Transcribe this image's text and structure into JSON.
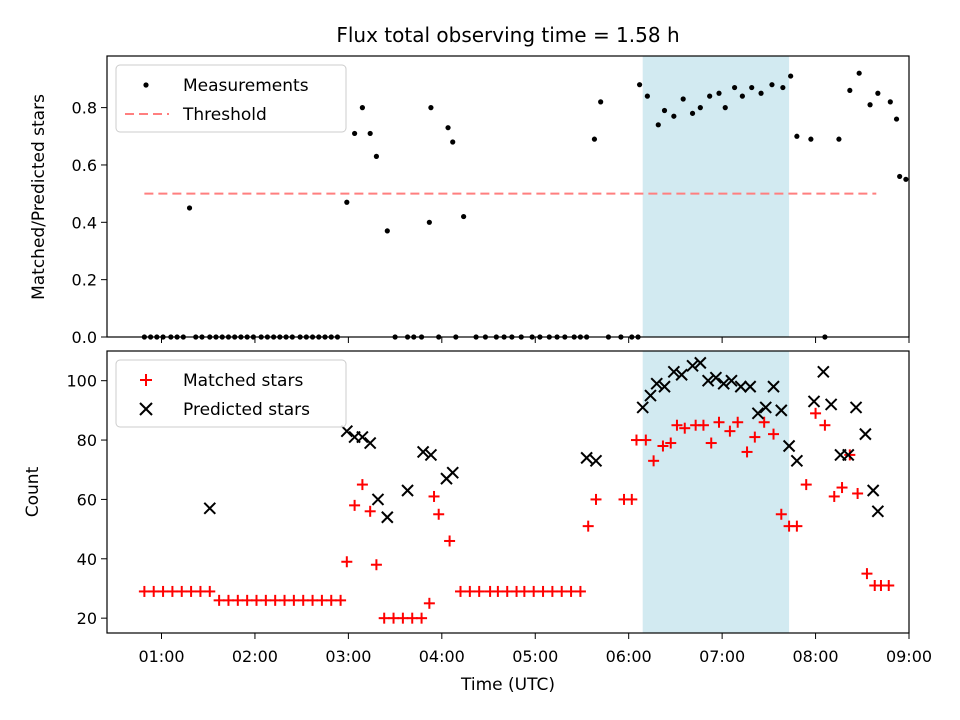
{
  "chart_data": [
    {
      "type": "scatter",
      "title": "Flux total observing time = 1.58 h",
      "ylabel": "Matched/Predicted stars",
      "xlabel": "",
      "ylim": [
        0,
        0.98
      ],
      "yticks": [
        "0.0",
        "0.2",
        "0.4",
        "0.6",
        "0.8"
      ],
      "legend": {
        "placement": "top-left",
        "entries": [
          "Measurements",
          "Threshold"
        ]
      },
      "highlight": {
        "x_start": "06:09",
        "x_end": "07:43"
      },
      "threshold": {
        "y": 0.5,
        "x_start": "00:49",
        "x_end": "08:39",
        "color": "#ff7f7f"
      },
      "series": [
        {
          "name": "Measurements",
          "color": "#000000",
          "x": [
            "00:49",
            "00:53",
            "00:57",
            "01:01",
            "01:06",
            "01:10",
            "01:14",
            "01:18",
            "01:22",
            "01:26",
            "01:31",
            "01:35",
            "01:39",
            "01:43",
            "01:47",
            "01:51",
            "01:55",
            "01:59",
            "02:04",
            "02:08",
            "02:12",
            "02:16",
            "02:20",
            "02:24",
            "02:29",
            "02:33",
            "02:37",
            "02:41",
            "02:45",
            "02:49",
            "02:53",
            "02:59",
            "03:04",
            "03:09",
            "03:14",
            "03:18",
            "03:25",
            "03:30",
            "03:38",
            "03:42",
            "03:47",
            "03:52",
            "03:58",
            "03:53",
            "04:04",
            "04:07",
            "04:09",
            "04:14",
            "04:22",
            "04:28",
            "04:35",
            "04:40",
            "04:45",
            "04:51",
            "04:58",
            "05:03",
            "05:09",
            "05:14",
            "05:19",
            "05:25",
            "05:29",
            "05:33",
            "05:38",
            "05:42",
            "05:47",
            "05:55",
            "06:02",
            "06:06",
            "06:07",
            "06:12",
            "06:19",
            "06:23",
            "06:29",
            "06:35",
            "06:41",
            "06:46",
            "06:52",
            "06:58",
            "07:02",
            "07:08",
            "07:13",
            "07:19",
            "07:25",
            "07:32",
            "07:39",
            "07:44",
            "07:48",
            "07:57",
            "08:06",
            "08:15",
            "08:22",
            "08:28",
            "08:35",
            "08:40",
            "08:48",
            "08:52",
            "08:54",
            "08:58"
          ],
          "y": [
            0,
            0,
            0,
            0,
            0,
            0,
            0,
            0.45,
            0,
            0,
            0,
            0,
            0,
            0,
            0,
            0,
            0,
            0,
            0,
            0,
            0,
            0,
            0,
            0,
            0,
            0,
            0,
            0,
            0,
            0,
            0,
            0.47,
            0.71,
            0.8,
            0.71,
            0.63,
            0.37,
            0,
            0,
            0,
            0,
            0.4,
            0,
            0.8,
            0.73,
            0.68,
            0,
            0.42,
            0,
            0,
            0,
            0,
            0,
            0,
            0,
            0,
            0,
            0,
            0,
            0,
            0,
            0,
            0.69,
            0.82,
            0,
            0,
            0,
            0,
            0.88,
            0.84,
            0.74,
            0.79,
            0.77,
            0.83,
            0.78,
            0.8,
            0.84,
            0.85,
            0.8,
            0.87,
            0.84,
            0.87,
            0.85,
            0.88,
            0.87,
            0.91,
            0.7,
            0.69,
            0,
            0.69,
            0.86,
            0.92,
            0.81,
            0.85,
            0.82,
            0.76,
            0.56,
            0.55
          ]
        }
      ]
    },
    {
      "type": "scatter",
      "xlabel": "Time (UTC)",
      "ylabel": "Count",
      "ylim": [
        15,
        110
      ],
      "yticks": [
        "20",
        "40",
        "60",
        "80",
        "100"
      ],
      "xticks": [
        "01:00",
        "02:00",
        "03:00",
        "04:00",
        "05:00",
        "06:00",
        "07:00",
        "08:00",
        "09:00"
      ],
      "xlim": [
        "00:25",
        "09:00"
      ],
      "legend": {
        "placement": "top-left",
        "entries": [
          "Matched stars",
          "Predicted stars"
        ]
      },
      "highlight": {
        "x_start": "06:09",
        "x_end": "07:43"
      },
      "series": [
        {
          "name": "Matched stars",
          "marker": "plus",
          "color": "#ff0000",
          "x": [
            "00:49",
            "00:55",
            "01:01",
            "01:07",
            "01:13",
            "01:19",
            "01:25",
            "01:31",
            "01:37",
            "01:43",
            "01:49",
            "01:55",
            "02:01",
            "02:07",
            "02:13",
            "02:19",
            "02:25",
            "02:31",
            "02:37",
            "02:43",
            "02:49",
            "02:55",
            "02:59",
            "03:04",
            "03:09",
            "03:14",
            "03:18",
            "03:23",
            "03:29",
            "03:35",
            "03:41",
            "03:47",
            "03:52",
            "03:55",
            "03:58",
            "04:05",
            "04:12",
            "04:18",
            "04:24",
            "04:31",
            "04:36",
            "04:42",
            "04:48",
            "04:53",
            "04:59",
            "05:05",
            "05:11",
            "05:17",
            "05:23",
            "05:29",
            "05:34",
            "05:39",
            "05:57",
            "06:02",
            "06:05",
            "06:11",
            "06:16",
            "06:22",
            "06:27",
            "06:31",
            "06:36",
            "06:43",
            "06:48",
            "06:53",
            "06:58",
            "07:05",
            "07:10",
            "07:16",
            "07:21",
            "07:27",
            "07:33",
            "07:38",
            "07:43",
            "07:48",
            "07:54",
            "08:00",
            "08:06",
            "08:12",
            "08:17",
            "08:22",
            "08:27",
            "08:33",
            "08:38",
            "08:42",
            "08:47"
          ],
          "y": [
            29,
            29,
            29,
            29,
            29,
            29,
            29,
            29,
            26,
            26,
            26,
            26,
            26,
            26,
            26,
            26,
            26,
            26,
            26,
            26,
            26,
            26,
            39,
            58,
            65,
            56,
            38,
            20,
            20,
            20,
            20,
            20,
            25,
            61,
            55,
            46,
            29,
            29,
            29,
            29,
            29,
            29,
            29,
            29,
            29,
            29,
            29,
            29,
            29,
            29,
            51,
            60,
            60,
            60,
            80,
            80,
            73,
            78,
            79,
            85,
            84,
            85,
            85,
            79,
            86,
            83,
            86,
            76,
            81,
            86,
            82,
            55,
            51,
            51,
            65,
            89,
            85,
            61,
            64,
            75,
            62,
            35,
            31,
            31,
            31
          ]
        },
        {
          "name": "Predicted stars",
          "marker": "x",
          "color": "#000000",
          "x": [
            "01:31",
            "02:59",
            "03:04",
            "03:09",
            "03:14",
            "03:19",
            "03:25",
            "03:38",
            "03:48",
            "03:53",
            "04:03",
            "04:07",
            "05:33",
            "05:39",
            "06:09",
            "06:14",
            "06:18",
            "06:23",
            "06:29",
            "06:34",
            "06:41",
            "06:46",
            "06:51",
            "06:56",
            "07:01",
            "07:06",
            "07:12",
            "07:18",
            "07:23",
            "07:28",
            "07:33",
            "07:38",
            "07:43",
            "07:48",
            "07:59",
            "08:05",
            "08:10",
            "08:16",
            "08:21",
            "08:26",
            "08:32",
            "08:37",
            "08:40"
          ],
          "y": [
            57,
            83,
            81,
            81,
            79,
            60,
            54,
            63,
            76,
            75,
            67,
            69,
            74,
            73,
            91,
            95,
            99,
            98,
            103,
            102,
            105,
            106,
            100,
            101,
            99,
            100,
            98,
            98,
            89,
            91,
            98,
            90,
            78,
            73,
            93,
            103,
            92,
            75,
            75,
            91,
            82,
            63,
            56
          ]
        }
      ]
    }
  ]
}
